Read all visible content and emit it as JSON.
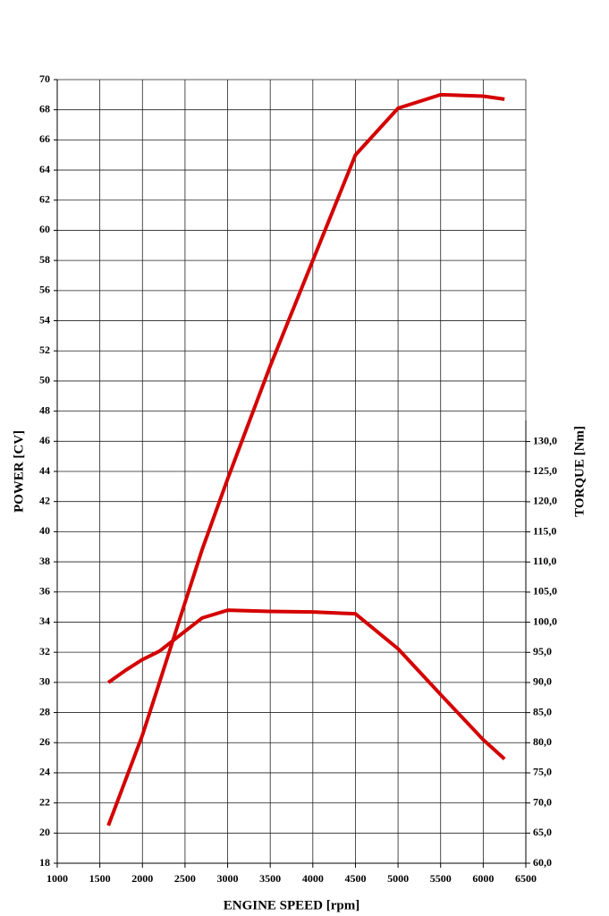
{
  "chart_data": {
    "type": "line",
    "xlabel": "ENGINE SPEED [rpm]",
    "ylabel": "POWER [CV]",
    "y2label": "TORQUE [Nm]",
    "x": [
      1600,
      1800,
      2000,
      2200,
      2500,
      2700,
      3000,
      3500,
      4000,
      4500,
      5000,
      5500,
      6000,
      6250
    ],
    "series": [
      {
        "color": "#d40000",
        "values": [
          20.5,
          23.5,
          26.5,
          30,
          35.3,
          38.8,
          43.5,
          51,
          58,
          65,
          68.1,
          69,
          68.9,
          68.7
        ]
      },
      {
        "color": "#d40000",
        "axis": "y2",
        "values": [
          90,
          92,
          93.8,
          95.2,
          98.5,
          100.7,
          102,
          101.8,
          101.7,
          101.4,
          95.6,
          88,
          80.5,
          77.3
        ]
      }
    ],
    "xlim": [
      1000,
      6500
    ],
    "xticks": [
      1000,
      1500,
      2000,
      2500,
      3000,
      3500,
      4000,
      4500,
      5000,
      5500,
      6000,
      6500
    ],
    "ylim": [
      18,
      70
    ],
    "yticks": [
      18,
      20,
      22,
      24,
      26,
      28,
      30,
      32,
      34,
      36,
      38,
      40,
      42,
      44,
      46,
      48,
      50,
      52,
      54,
      56,
      58,
      60,
      62,
      64,
      66,
      68,
      70
    ],
    "y2lim": [
      60,
      133.5
    ],
    "y2ticks": [
      {
        "value": 60,
        "label": "60,0"
      },
      {
        "value": 65,
        "label": "65,0"
      },
      {
        "value": 70,
        "label": "70,0"
      },
      {
        "value": 75,
        "label": "75,0"
      },
      {
        "value": 80,
        "label": "80,0"
      },
      {
        "value": 85,
        "label": "85,0"
      },
      {
        "value": 90,
        "label": "90,0"
      },
      {
        "value": 95,
        "label": "95,0"
      },
      {
        "value": 100,
        "label": "100,0"
      },
      {
        "value": 105,
        "label": "105,0"
      },
      {
        "value": 110,
        "label": "110,0"
      },
      {
        "value": 115,
        "label": "115,0"
      },
      {
        "value": 120,
        "label": "120,0"
      },
      {
        "value": 125,
        "label": "125,0"
      },
      {
        "value": 130,
        "label": "130,0"
      }
    ],
    "grid": true
  }
}
